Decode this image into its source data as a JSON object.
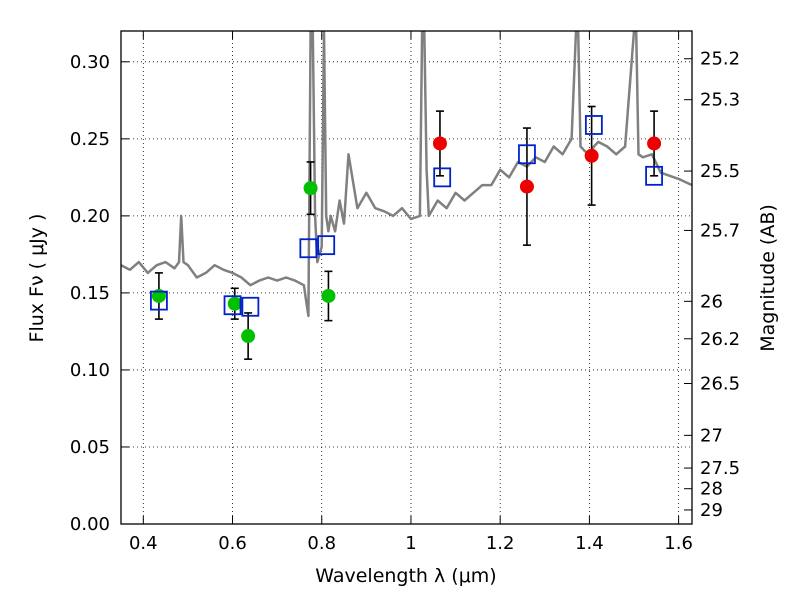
{
  "chart_data": {
    "type": "scatter",
    "xlabel": "Wavelength  λ (μm)",
    "ylabel": "Flux  Fν ( μJy )",
    "ylabel_right": "Magnitude (AB)",
    "xlim": [
      0.35,
      1.63
    ],
    "ylim": [
      0.0,
      0.32
    ],
    "grid": true,
    "x_ticks": [
      {
        "v": 0.4,
        "label": "0.4"
      },
      {
        "v": 0.6,
        "label": "0.6"
      },
      {
        "v": 0.8,
        "label": "0.8"
      },
      {
        "v": 1.0,
        "label": "1"
      },
      {
        "v": 1.2,
        "label": "1.2"
      },
      {
        "v": 1.4,
        "label": "1.4"
      },
      {
        "v": 1.6,
        "label": "1.6"
      }
    ],
    "y_ticks": [
      {
        "v": 0.0,
        "label": "0.00"
      },
      {
        "v": 0.05,
        "label": "0.05"
      },
      {
        "v": 0.1,
        "label": "0.10"
      },
      {
        "v": 0.15,
        "label": "0.15"
      },
      {
        "v": 0.2,
        "label": "0.20"
      },
      {
        "v": 0.25,
        "label": "0.25"
      },
      {
        "v": 0.3,
        "label": "0.30"
      }
    ],
    "mag_ticks": [
      {
        "v": 25.2,
        "label": "25.2"
      },
      {
        "v": 25.3,
        "label": "25.3"
      },
      {
        "v": 25.5,
        "label": "25.5"
      },
      {
        "v": 25.7,
        "label": "25.7"
      },
      {
        "v": 26,
        "label": "26"
      },
      {
        "v": 26.2,
        "label": "26.2"
      },
      {
        "v": 26.5,
        "label": "26.5"
      },
      {
        "v": 27,
        "label": "27"
      },
      {
        "v": 27.5,
        "label": "27.5"
      },
      {
        "v": 28,
        "label": "28"
      },
      {
        "v": 29,
        "label": "29"
      }
    ],
    "series": [
      {
        "kind": "line",
        "color": "#808080",
        "x": [
          0.35,
          0.37,
          0.39,
          0.41,
          0.43,
          0.45,
          0.47,
          0.48,
          0.485,
          0.49,
          0.5,
          0.52,
          0.54,
          0.56,
          0.58,
          0.6,
          0.62,
          0.64,
          0.66,
          0.68,
          0.7,
          0.72,
          0.74,
          0.76,
          0.765,
          0.77,
          0.775,
          0.78,
          0.785,
          0.79,
          0.795,
          0.8,
          0.805,
          0.81,
          0.815,
          0.82,
          0.83,
          0.84,
          0.85,
          0.86,
          0.88,
          0.9,
          0.92,
          0.94,
          0.96,
          0.98,
          1.0,
          1.02,
          1.025,
          1.03,
          1.035,
          1.04,
          1.06,
          1.08,
          1.1,
          1.12,
          1.14,
          1.16,
          1.18,
          1.2,
          1.22,
          1.24,
          1.26,
          1.28,
          1.3,
          1.32,
          1.34,
          1.36,
          1.37,
          1.375,
          1.38,
          1.39,
          1.4,
          1.41,
          1.42,
          1.44,
          1.46,
          1.48,
          1.5,
          1.505,
          1.51,
          1.52,
          1.54,
          1.56,
          1.58,
          1.6,
          1.63
        ],
        "y": [
          0.168,
          0.165,
          0.17,
          0.163,
          0.168,
          0.17,
          0.166,
          0.17,
          0.2,
          0.17,
          0.168,
          0.16,
          0.163,
          0.168,
          0.165,
          0.163,
          0.16,
          0.155,
          0.158,
          0.16,
          0.158,
          0.16,
          0.158,
          0.155,
          0.145,
          0.135,
          0.32,
          0.32,
          0.2,
          0.17,
          0.175,
          0.18,
          0.32,
          0.2,
          0.19,
          0.2,
          0.19,
          0.21,
          0.195,
          0.24,
          0.205,
          0.215,
          0.205,
          0.203,
          0.2,
          0.205,
          0.198,
          0.2,
          0.32,
          0.32,
          0.23,
          0.2,
          0.21,
          0.205,
          0.215,
          0.21,
          0.215,
          0.22,
          0.22,
          0.23,
          0.225,
          0.235,
          0.232,
          0.238,
          0.235,
          0.245,
          0.24,
          0.25,
          0.32,
          0.32,
          0.245,
          0.242,
          0.24,
          0.245,
          0.248,
          0.245,
          0.24,
          0.245,
          0.32,
          0.32,
          0.24,
          0.238,
          0.24,
          0.228,
          0.226,
          0.224,
          0.22
        ]
      },
      {
        "kind": "points",
        "marker": "circle",
        "color": "#00c000",
        "x": [
          0.435,
          0.605,
          0.635,
          0.775,
          0.815
        ],
        "y": [
          0.148,
          0.143,
          0.122,
          0.218,
          0.148
        ],
        "err": [
          0.015,
          0.01,
          0.015,
          0.017,
          0.016
        ]
      },
      {
        "kind": "points",
        "marker": "circle",
        "color": "#ee0000",
        "x": [
          1.065,
          1.26,
          1.405,
          1.545
        ],
        "y": [
          0.247,
          0.219,
          0.239,
          0.247
        ],
        "err": [
          0.021,
          0.038,
          0.032,
          0.021
        ]
      },
      {
        "kind": "points",
        "marker": "square-open",
        "color": "#0022cc",
        "x": [
          0.435,
          0.6,
          0.64,
          0.77,
          0.81,
          1.07,
          1.26,
          1.41,
          1.545
        ],
        "y": [
          0.145,
          0.142,
          0.141,
          0.179,
          0.181,
          0.225,
          0.24,
          0.259,
          0.226
        ]
      }
    ]
  }
}
